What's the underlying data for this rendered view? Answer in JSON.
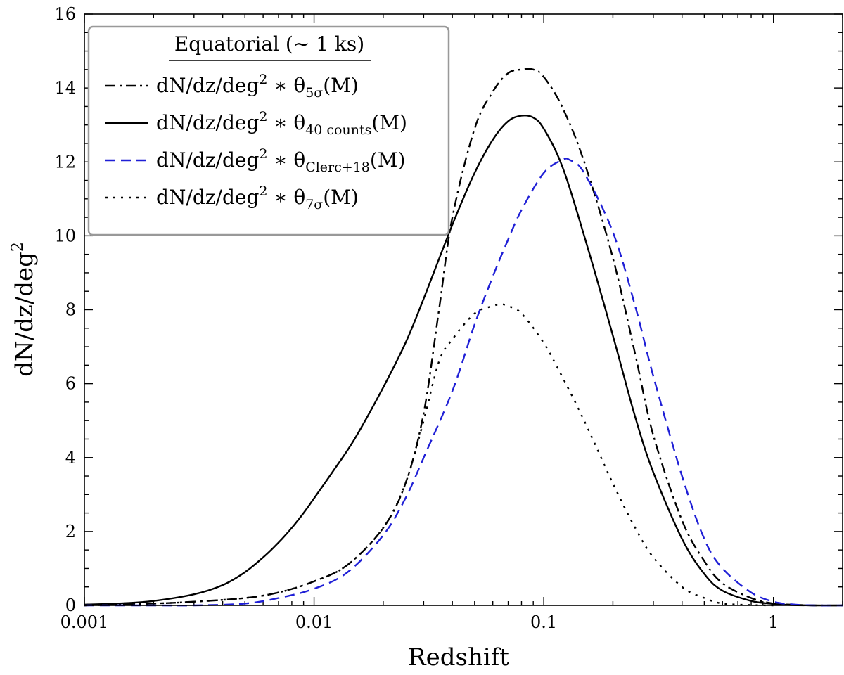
{
  "chart_data": {
    "type": "line",
    "title": "",
    "xlabel": "Redshift",
    "ylabel": "dN/dz/deg",
    "ylabel_sup": "2",
    "xscale": "log",
    "xlim": [
      0.001,
      2.0
    ],
    "ylim": [
      0,
      16
    ],
    "grid": false,
    "x_ticks": [
      {
        "value": 0.001,
        "label": "0.001"
      },
      {
        "value": 0.01,
        "label": "0.01"
      },
      {
        "value": 0.1,
        "label": "0.1"
      },
      {
        "value": 1,
        "label": "1"
      }
    ],
    "y_ticks": [
      {
        "value": 0,
        "label": "0"
      },
      {
        "value": 2,
        "label": "2"
      },
      {
        "value": 4,
        "label": "4"
      },
      {
        "value": 6,
        "label": "6"
      },
      {
        "value": 8,
        "label": "8"
      },
      {
        "value": 10,
        "label": "10"
      },
      {
        "value": 12,
        "label": "12"
      },
      {
        "value": 14,
        "label": "14"
      },
      {
        "value": 16,
        "label": "16"
      }
    ],
    "legend": {
      "position": "top-left",
      "title": "Equatorial (∼ 1 ks)",
      "prefix": "dN/dz/deg",
      "prefix_sup": "2",
      "operator": "∗",
      "theta": "θ",
      "suffix": "(M)"
    },
    "series": [
      {
        "name": "dN/dz/deg2 * θ5σ(M)",
        "subscript": "5σ",
        "color": "#000000",
        "dash": "dashdot",
        "x": [
          0.001,
          0.002,
          0.003,
          0.005,
          0.007,
          0.01,
          0.014,
          0.02,
          0.025,
          0.03,
          0.035,
          0.04,
          0.05,
          0.06,
          0.07,
          0.08,
          0.09,
          0.1,
          0.12,
          0.15,
          0.2,
          0.25,
          0.3,
          0.4,
          0.5,
          0.6,
          0.8,
          1.0,
          1.2,
          1.5,
          2.0
        ],
        "y": [
          0.0,
          0.05,
          0.1,
          0.2,
          0.35,
          0.65,
          1.1,
          2.1,
          3.3,
          5.2,
          8.0,
          10.5,
          12.9,
          13.9,
          14.4,
          14.5,
          14.5,
          14.3,
          13.5,
          12.0,
          9.4,
          6.8,
          4.6,
          2.3,
          1.2,
          0.6,
          0.2,
          0.05,
          0.02,
          0.0,
          0.0
        ]
      },
      {
        "name": "dN/dz/deg2 * θ40 counts(M)",
        "subscript": "40 counts",
        "color": "#000000",
        "dash": "solid",
        "x": [
          0.001,
          0.0015,
          0.002,
          0.003,
          0.004,
          0.005,
          0.006,
          0.007,
          0.008,
          0.009,
          0.01,
          0.012,
          0.015,
          0.02,
          0.025,
          0.03,
          0.04,
          0.05,
          0.06,
          0.07,
          0.08,
          0.09,
          0.1,
          0.12,
          0.15,
          0.2,
          0.25,
          0.3,
          0.4,
          0.5,
          0.6,
          0.8,
          1.0,
          1.2,
          1.5,
          2.0
        ],
        "y": [
          0.02,
          0.06,
          0.12,
          0.3,
          0.55,
          0.9,
          1.3,
          1.7,
          2.1,
          2.5,
          2.9,
          3.6,
          4.5,
          5.9,
          7.1,
          8.3,
          10.3,
          11.7,
          12.6,
          13.1,
          13.25,
          13.2,
          12.9,
          11.9,
          10.0,
          7.3,
          5.1,
          3.6,
          1.8,
          0.85,
          0.4,
          0.12,
          0.04,
          0.01,
          0.0,
          0.0
        ]
      },
      {
        "name": "dN/dz/deg2 * θClerc+18(M)",
        "subscript": "Clerc+18",
        "color": "#1f1fd6",
        "dash": "dashed",
        "x": [
          0.001,
          0.002,
          0.003,
          0.005,
          0.007,
          0.01,
          0.014,
          0.02,
          0.025,
          0.03,
          0.04,
          0.05,
          0.06,
          0.07,
          0.08,
          0.1,
          0.12,
          0.13,
          0.15,
          0.2,
          0.25,
          0.3,
          0.4,
          0.5,
          0.6,
          0.8,
          1.0,
          1.2,
          1.5,
          2.0
        ],
        "y": [
          0.0,
          0.0,
          0.0,
          0.05,
          0.2,
          0.45,
          0.9,
          1.9,
          2.9,
          4.0,
          5.8,
          7.6,
          8.9,
          9.9,
          10.7,
          11.7,
          12.05,
          12.05,
          11.7,
          10.1,
          8.1,
          6.2,
          3.5,
          1.8,
          1.0,
          0.35,
          0.1,
          0.03,
          0.0,
          0.0
        ]
      },
      {
        "name": "dN/dz/deg2 * θ7σ(M)",
        "subscript": "7σ",
        "color": "#000000",
        "dash": "dotted",
        "x": [
          0.001,
          0.002,
          0.003,
          0.005,
          0.007,
          0.01,
          0.014,
          0.02,
          0.025,
          0.03,
          0.035,
          0.04,
          0.05,
          0.06,
          0.065,
          0.07,
          0.08,
          0.1,
          0.12,
          0.15,
          0.2,
          0.25,
          0.3,
          0.4,
          0.5,
          0.6,
          0.8,
          1.0
        ],
        "y": [
          0.0,
          0.05,
          0.1,
          0.2,
          0.35,
          0.65,
          1.1,
          2.1,
          3.3,
          5.0,
          6.6,
          7.2,
          7.9,
          8.1,
          8.15,
          8.1,
          7.9,
          7.1,
          6.2,
          5.0,
          3.3,
          2.1,
          1.3,
          0.5,
          0.2,
          0.05,
          0.01,
          0.0
        ]
      }
    ]
  }
}
